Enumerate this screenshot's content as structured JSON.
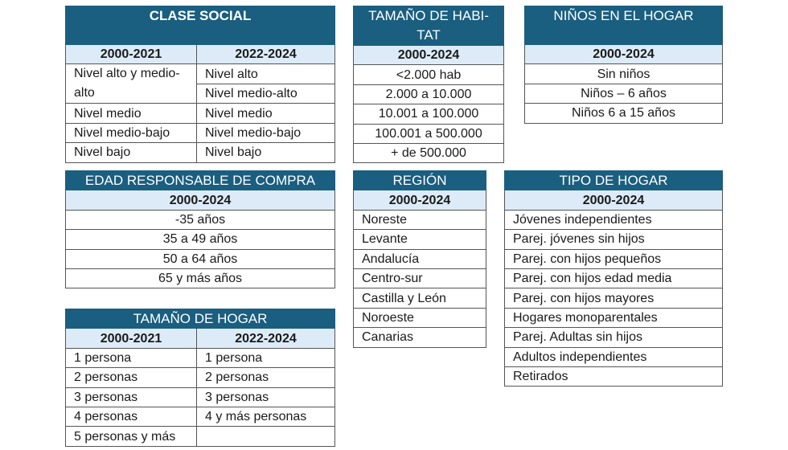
{
  "clase_social": {
    "title": "CLASE SOCIAL",
    "headers": [
      "2000-2021",
      "2022-2024"
    ],
    "left": [
      "Nivel alto y medio-alto",
      "Nivel medio",
      "Nivel medio-bajo",
      "Nivel bajo"
    ],
    "right": [
      "Nivel alto",
      "Nivel medio-alto",
      "Nivel medio",
      "Nivel medio-bajo",
      "Nivel bajo"
    ]
  },
  "tamano_habitat": {
    "title": "TAMAÑO DE HABI-TAT",
    "header": "2000-2024",
    "rows": [
      "<2.000 hab",
      "2.000 a 10.000",
      "10.001 a 100.000",
      "100.001 a 500.000",
      "+ de 500.000"
    ]
  },
  "ninos_hogar": {
    "title": "NIÑOS EN EL HOGAR",
    "header": "2000-2024",
    "rows": [
      "Sin niños",
      "Niños – 6 años",
      "Niños 6 a 15 años"
    ]
  },
  "edad_responsable": {
    "title": "EDAD RESPONSABLE DE COMPRA",
    "header": "2000-2024",
    "rows": [
      "-35 años",
      "35 a 49 años",
      "50 a 64 años",
      "65 y más años"
    ]
  },
  "tamano_hogar": {
    "title": "TAMAÑO DE HOGAR",
    "headers": [
      "2000-2021",
      "2022-2024"
    ],
    "left": [
      "1 persona",
      "2 personas",
      "3 personas",
      "4 personas",
      "5 personas y más"
    ],
    "right": [
      "1 persona",
      "2 personas",
      "3 personas",
      "4 y más personas",
      ""
    ]
  },
  "region": {
    "title": "REGIÓN",
    "header": "2000-2024",
    "rows": [
      "Noreste",
      "Levante",
      "Andalucía",
      "Centro-sur",
      "Castilla y León",
      "Noroeste",
      "Canarias"
    ]
  },
  "tipo_hogar": {
    "title": "TIPO DE HOGAR",
    "header": "2000-2024",
    "rows": [
      "Jóvenes independientes",
      "Parej. jóvenes sin hijos",
      "Parej. con hijos pequeños",
      "Parej. con hijos edad media",
      "Parej. con hijos mayores",
      "Hogares monoparentales",
      "Parej. Adultas sin hijos",
      "Adultos independientes",
      "Retirados"
    ]
  },
  "colors": {
    "header": "#1a5e80",
    "subheader": "#dcebf7"
  }
}
